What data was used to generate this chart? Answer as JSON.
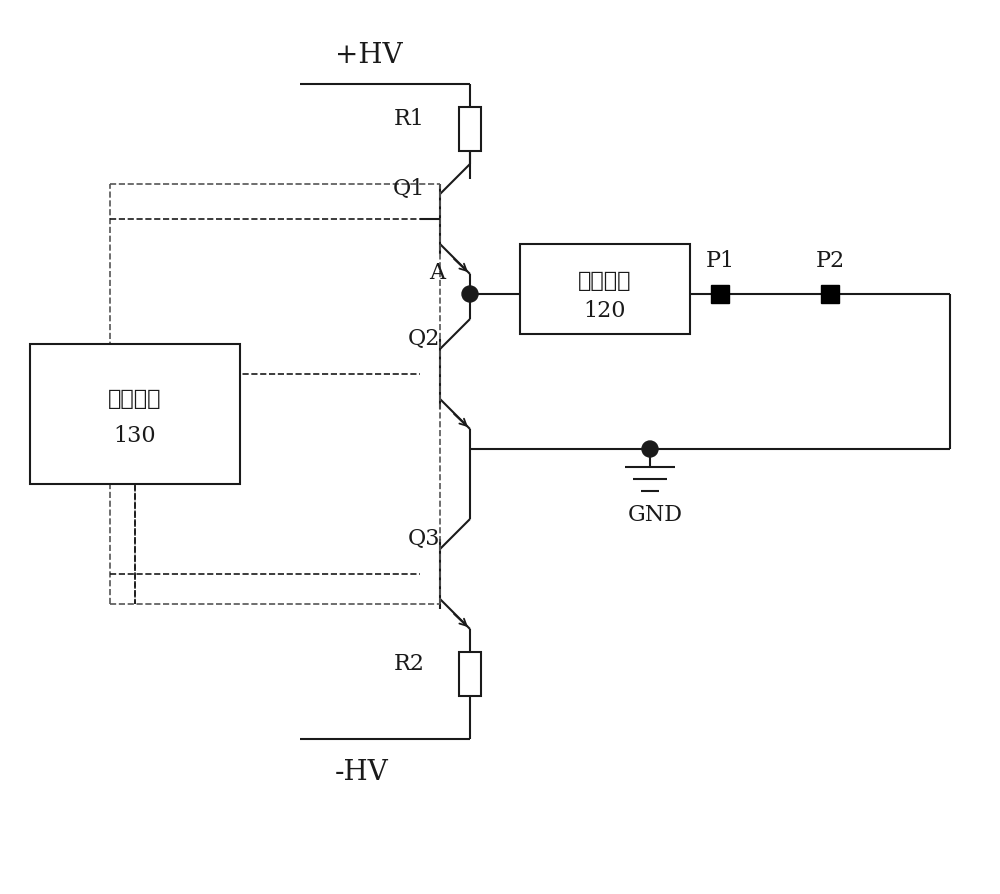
{
  "bg_color": "#ffffff",
  "line_color": "#1a1a1a",
  "dashed_color": "#555555",
  "figsize": [
    10.0,
    8.94
  ],
  "dpi": 100,
  "labels": {
    "HV_pos": "+HV",
    "HV_neg": "-HV",
    "R1": "R1",
    "R2": "R2",
    "Q1": "Q1",
    "Q2": "Q2",
    "Q3": "Q3",
    "A": "A",
    "GND": "GND",
    "filter_title": "滤波电路",
    "filter_num": "120",
    "control_title": "控制电路",
    "control_num": "130",
    "P1": "P1",
    "P2": "P2"
  },
  "font_size_large": 20,
  "font_size_medium": 16,
  "font_size_small": 14
}
